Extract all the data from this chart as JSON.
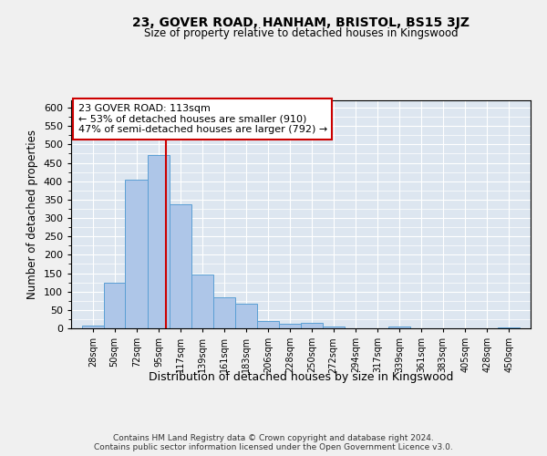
{
  "title": "23, GOVER ROAD, HANHAM, BRISTOL, BS15 3JZ",
  "subtitle": "Size of property relative to detached houses in Kingswood",
  "xlabel": "Distribution of detached houses by size in Kingswood",
  "ylabel": "Number of detached properties",
  "bar_color": "#aec6e8",
  "bar_edge_color": "#5a9fd4",
  "background_color": "#dde6f0",
  "grid_color": "#ffffff",
  "annotation_box_color": "#cc0000",
  "property_line_color": "#cc0000",
  "property_size": 113,
  "annotation_text": "23 GOVER ROAD: 113sqm\n← 53% of detached houses are smaller (910)\n47% of semi-detached houses are larger (792) →",
  "footer_text": "Contains HM Land Registry data © Crown copyright and database right 2024.\nContains public sector information licensed under the Open Government Licence v3.0.",
  "bins": [
    28,
    50,
    72,
    95,
    117,
    139,
    161,
    183,
    206,
    228,
    250,
    272,
    294,
    317,
    339,
    361,
    383,
    405,
    428,
    450,
    472
  ],
  "bar_heights": [
    8,
    125,
    405,
    472,
    338,
    147,
    85,
    67,
    19,
    12,
    14,
    6,
    1,
    0,
    4,
    0,
    0,
    0,
    0,
    3
  ],
  "ylim": [
    0,
    620
  ],
  "yticks": [
    0,
    50,
    100,
    150,
    200,
    250,
    300,
    350,
    400,
    450,
    500,
    550,
    600
  ],
  "fig_width": 6.0,
  "fig_height": 5.0,
  "dpi": 100
}
